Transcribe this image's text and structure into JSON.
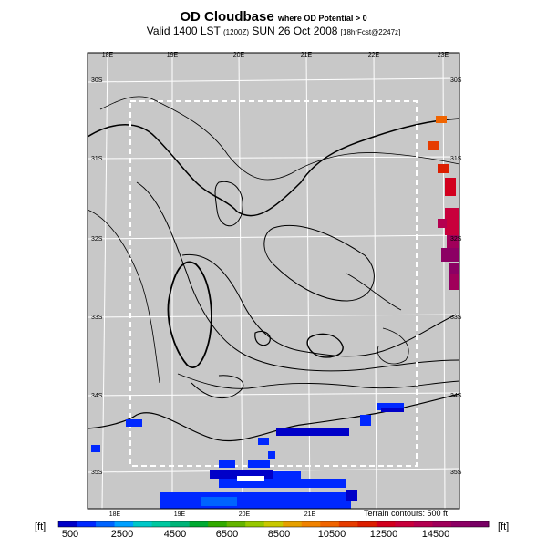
{
  "title": {
    "main": "OD Cloudbase",
    "qualifier": "where OD Potential > 0",
    "valid_prefix": "Valid 1400 LST",
    "valid_utc": "(1200Z)",
    "valid_date": "SUN 26 Oct 2008",
    "forecast_info": "[18hrFcst@2247z]"
  },
  "map": {
    "lon_labels_top": [
      "18E",
      "19E",
      "20E",
      "21E",
      "22E",
      "23E"
    ],
    "lon_labels_bottom": [
      "18E",
      "19E",
      "20E",
      "21E"
    ],
    "lat_labels_left": [
      "30S",
      "31S",
      "32S",
      "33S",
      "34S",
      "35S"
    ],
    "lat_labels_right": [
      "30S",
      "31S",
      "32S",
      "33S",
      "34S",
      "35S"
    ],
    "terrain_note": "Terrain contours: 500 ft",
    "background_color": "#c8c8c8"
  },
  "colorbar": {
    "unit": "[ft]",
    "tick_labels": [
      "500",
      "2500",
      "4500",
      "6500",
      "8500",
      "10500",
      "12500",
      "14500"
    ],
    "colors": [
      "#0000c8",
      "#0028ff",
      "#0064ff",
      "#00a0ff",
      "#00c8c8",
      "#00c8a0",
      "#00b478",
      "#00aa32",
      "#32aa00",
      "#64b400",
      "#96c800",
      "#c8c800",
      "#e6a000",
      "#f08200",
      "#f06400",
      "#e63c00",
      "#dc1e00",
      "#d2001e",
      "#c8003c",
      "#b40050",
      "#a0005a",
      "#8c0064",
      "#780064"
    ]
  }
}
